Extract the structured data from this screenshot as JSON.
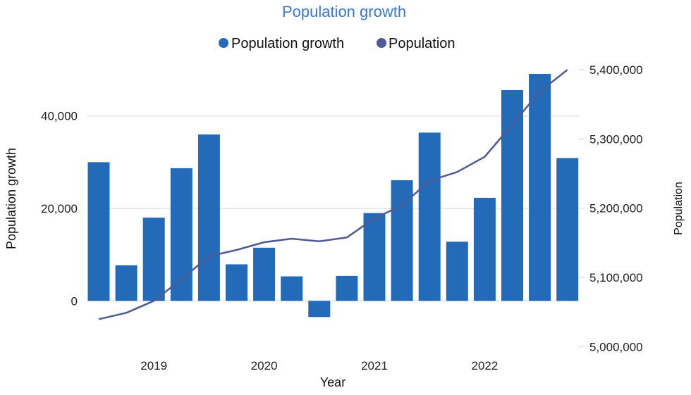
{
  "chart_data": {
    "type": "bar+line",
    "title": "Population growth",
    "xlabel": "Year",
    "ylabel_left": "Population growth",
    "ylabel_right": "Population",
    "legend_position": "top",
    "grid": true,
    "x": [
      "2018-Q3",
      "2018-Q4",
      "2019-Q1",
      "2019-Q2",
      "2019-Q3",
      "2019-Q4",
      "2020-Q1",
      "2020-Q2",
      "2020-Q3",
      "2020-Q4",
      "2021-Q1",
      "2021-Q2",
      "2021-Q3",
      "2021-Q4",
      "2022-Q1",
      "2022-Q2",
      "2022-Q3",
      "2022-Q4"
    ],
    "x_ticks": [
      {
        "at": "2019-Q1",
        "label": "2019"
      },
      {
        "at": "2020-Q1",
        "label": "2020"
      },
      {
        "at": "2021-Q1",
        "label": "2021"
      },
      {
        "at": "2022-Q1",
        "label": "2022"
      }
    ],
    "y_left": {
      "range": [
        -10000,
        50000
      ],
      "ticks": [
        0,
        20000,
        40000
      ],
      "tick_labels": [
        "0",
        "20,000",
        "40,000"
      ]
    },
    "y_right": {
      "range": [
        5000000,
        5400000
      ],
      "ticks": [
        5000000,
        5100000,
        5200000,
        5300000,
        5400000
      ],
      "tick_labels": [
        "5,000,000",
        "5,100,000",
        "5,200,000",
        "5,300,000",
        "5,400,000"
      ]
    },
    "series": [
      {
        "name": "Population growth",
        "type": "bar",
        "axis": "left",
        "color": "#236AB9",
        "values": [
          30000,
          7700,
          18000,
          28700,
          36000,
          7900,
          11500,
          5300,
          -3500,
          5400,
          19000,
          26100,
          36400,
          12800,
          22300,
          45600,
          49100,
          30900
        ]
      },
      {
        "name": "Population",
        "type": "line",
        "axis": "right",
        "color": "#4E5A93",
        "values": [
          5039700,
          5048800,
          5066100,
          5097300,
          5130500,
          5139700,
          5150900,
          5156000,
          5152200,
          5157700,
          5185500,
          5204100,
          5239700,
          5252300,
          5274300,
          5321000,
          5368600,
          5400000
        ]
      }
    ],
    "title_color": "#3B78C9"
  }
}
